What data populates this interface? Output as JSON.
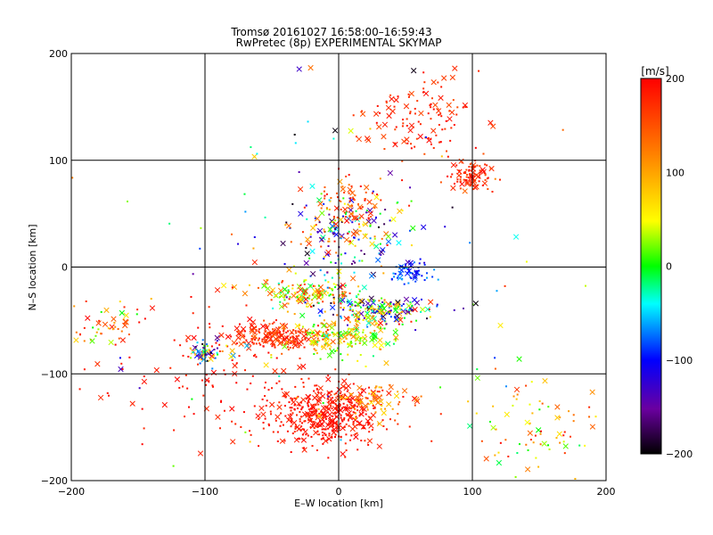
{
  "chart_data": {
    "type": "scatter",
    "title": "Tromsø 20161027 16:58:00–16:59:43",
    "subtitle": "RwPretec (8p) EXPERIMENTAL SKYMAP",
    "xlabel": "E–W location [km]",
    "ylabel": "N–S location [km]",
    "xlim": [
      -200,
      200
    ],
    "ylim": [
      -200,
      200
    ],
    "xticks": [
      "−200",
      "−100",
      "0",
      "100",
      "200"
    ],
    "yticks": [
      "−200",
      "−100",
      "0",
      "100",
      "200"
    ],
    "grid": true,
    "colorbar": {
      "label": "[m/s]",
      "range": [
        -200,
        200
      ],
      "ticks": [
        "200",
        "100",
        "0",
        "−100",
        "−200"
      ],
      "colors": [
        "#000000",
        "#6a00a0",
        "#0000ff",
        "#00ffff",
        "#00ff00",
        "#ffff00",
        "#ff8000",
        "#ff0000"
      ]
    },
    "markers": [
      "cross (×)",
      "dot (·)"
    ],
    "clusters": [
      {
        "center": [
          -10,
          -140
        ],
        "spread": [
          35,
          25
        ],
        "velocity": [
          170,
          200
        ],
        "count": 420
      },
      {
        "center": [
          25,
          -125
        ],
        "spread": [
          25,
          15
        ],
        "velocity": [
          60,
          200
        ],
        "count": 80
      },
      {
        "center": [
          -45,
          -65
        ],
        "spread": [
          30,
          10
        ],
        "velocity": [
          140,
          200
        ],
        "count": 200
      },
      {
        "center": [
          5,
          -65
        ],
        "spread": [
          35,
          14
        ],
        "velocity": [
          -20,
          120
        ],
        "count": 180
      },
      {
        "center": [
          30,
          -40
        ],
        "spread": [
          35,
          12
        ],
        "velocity": [
          -200,
          200
        ],
        "count": 200
      },
      {
        "center": [
          -20,
          -25
        ],
        "spread": [
          30,
          10
        ],
        "velocity": [
          -40,
          200
        ],
        "count": 150
      },
      {
        "center": [
          5,
          30
        ],
        "spread": [
          40,
          35
        ],
        "velocity": [
          -200,
          200
        ],
        "count": 200
      },
      {
        "center": [
          55,
          -5
        ],
        "spread": [
          15,
          10
        ],
        "velocity": [
          -120,
          -60
        ],
        "count": 60
      },
      {
        "center": [
          100,
          85
        ],
        "spread": [
          15,
          12
        ],
        "velocity": [
          150,
          200
        ],
        "count": 90
      },
      {
        "center": [
          60,
          140
        ],
        "spread": [
          35,
          30
        ],
        "velocity": [
          150,
          200
        ],
        "count": 120
      },
      {
        "center": [
          10,
          60
        ],
        "spread": [
          20,
          25
        ],
        "velocity": [
          120,
          200
        ],
        "count": 60
      },
      {
        "center": [
          -100,
          -80
        ],
        "spread": [
          12,
          8
        ],
        "velocity": [
          -200,
          120
        ],
        "count": 60
      },
      {
        "center": [
          -175,
          -55
        ],
        "spread": [
          20,
          15
        ],
        "velocity": [
          0,
          200
        ],
        "count": 40
      },
      {
        "center": [
          150,
          -150
        ],
        "spread": [
          40,
          35
        ],
        "velocity": [
          -20,
          200
        ],
        "count": 80
      },
      {
        "center": [
          -100,
          -100
        ],
        "spread": [
          70,
          60
        ],
        "velocity": [
          170,
          200
        ],
        "count": 120
      },
      {
        "center": [
          0,
          0
        ],
        "spread": [
          150,
          150
        ],
        "velocity": [
          -200,
          200
        ],
        "count": 100
      }
    ]
  }
}
